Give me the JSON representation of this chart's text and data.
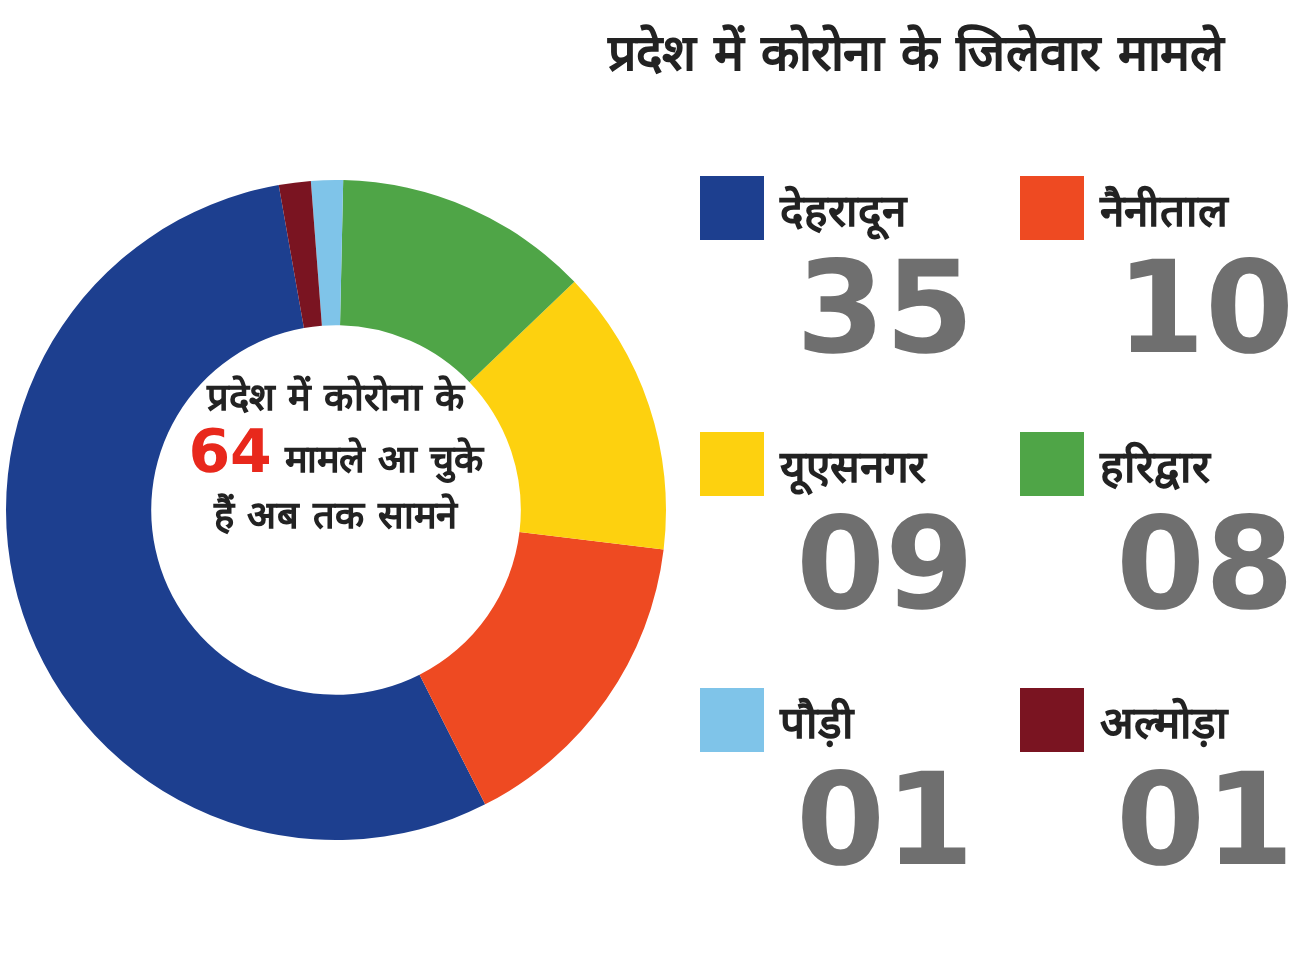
{
  "chart_data": {
    "type": "donut",
    "title": "प्रदेश में कोरोना के जिलेवार मामले",
    "categories": [
      "देहरादून",
      "नैनीताल",
      "यूएसनगर",
      "हरिद्वार",
      "पौड़ी",
      "अल्मोड़ा"
    ],
    "values": [
      35,
      10,
      9,
      8,
      1,
      1
    ],
    "value_labels": [
      "35",
      "10",
      "09",
      "08",
      "01",
      "01"
    ],
    "colors": [
      "#1d3f8f",
      "#ee4a22",
      "#fdd10f",
      "#4fa547",
      "#7fc4e9",
      "#7a1421"
    ],
    "annotations": [
      "प्रदेश में कोरोना के",
      "64",
      "मामले आ चुके हैं अब तक सामने"
    ],
    "legend": "right"
  }
}
